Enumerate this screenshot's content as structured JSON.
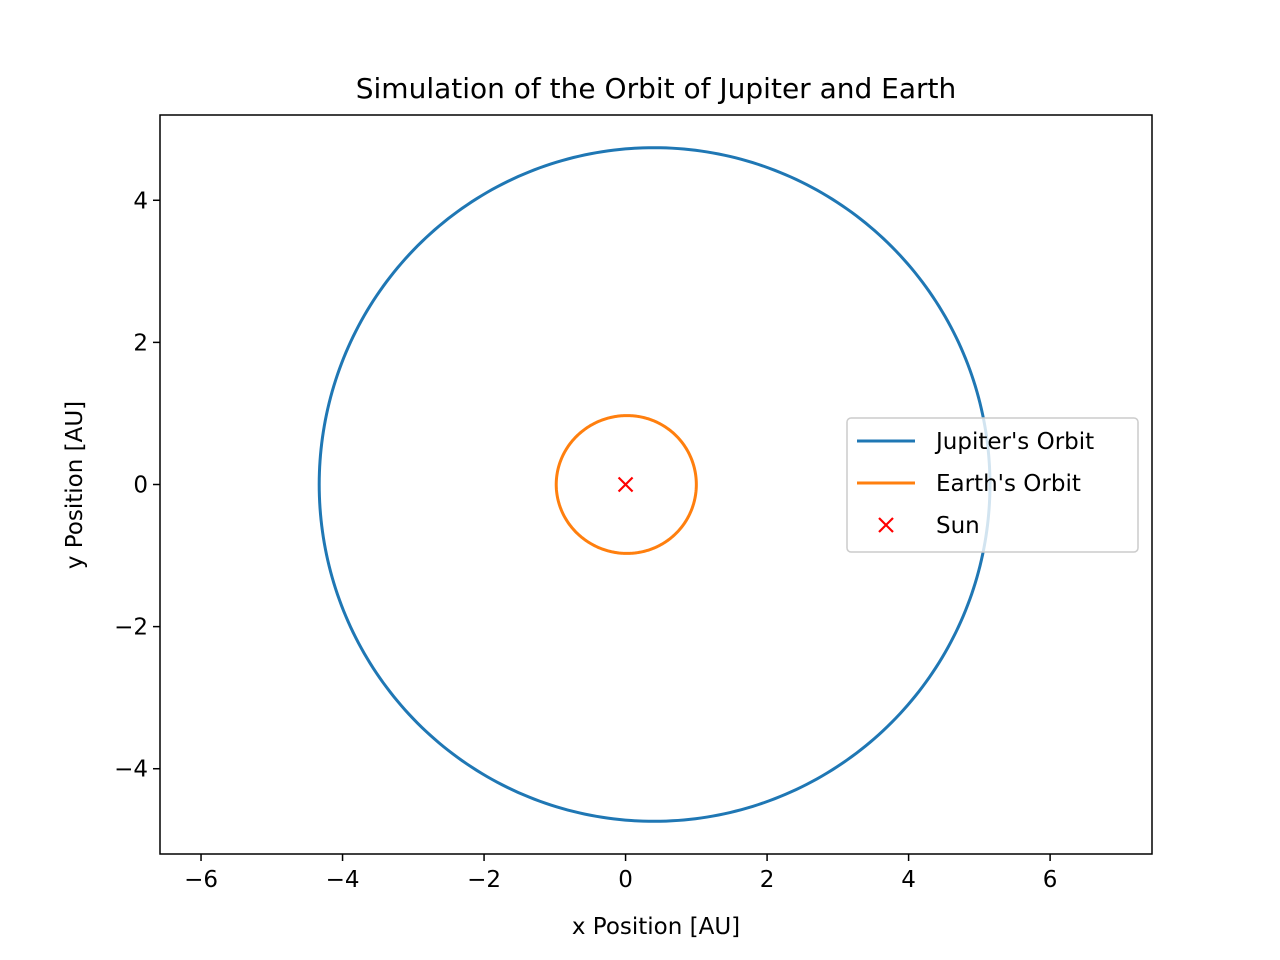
{
  "chart_data": {
    "type": "line",
    "title": "Simulation of the Orbit of Jupiter and Earth",
    "xlabel": "x Position [AU]",
    "ylabel": "y Position [AU]",
    "xlim": [
      -6.58,
      7.44
    ],
    "ylim": [
      -5.2,
      5.2
    ],
    "xticks": [
      -6,
      -4,
      -2,
      0,
      2,
      4,
      6
    ],
    "yticks": [
      -4,
      -2,
      0,
      2,
      4
    ],
    "grid": false,
    "legend_position": "center-right",
    "series": [
      {
        "name": "Jupiter's Orbit",
        "kind": "ellipse",
        "color": "#1f77b4",
        "x_min": -4.33,
        "x_max": 5.15,
        "y_min": -4.74,
        "y_max": 4.74,
        "x_at_y_max": 0.42
      },
      {
        "name": "Earth's Orbit",
        "kind": "ellipse",
        "color": "#ff7f0e",
        "x_min": -0.98,
        "x_max": 1.0,
        "y_min": -0.97,
        "y_max": 0.97,
        "x_at_y_max": 0.0
      },
      {
        "name": "Sun",
        "kind": "point",
        "marker": "x",
        "color": "#ff0000",
        "x": [
          0
        ],
        "y": [
          0
        ]
      }
    ]
  }
}
